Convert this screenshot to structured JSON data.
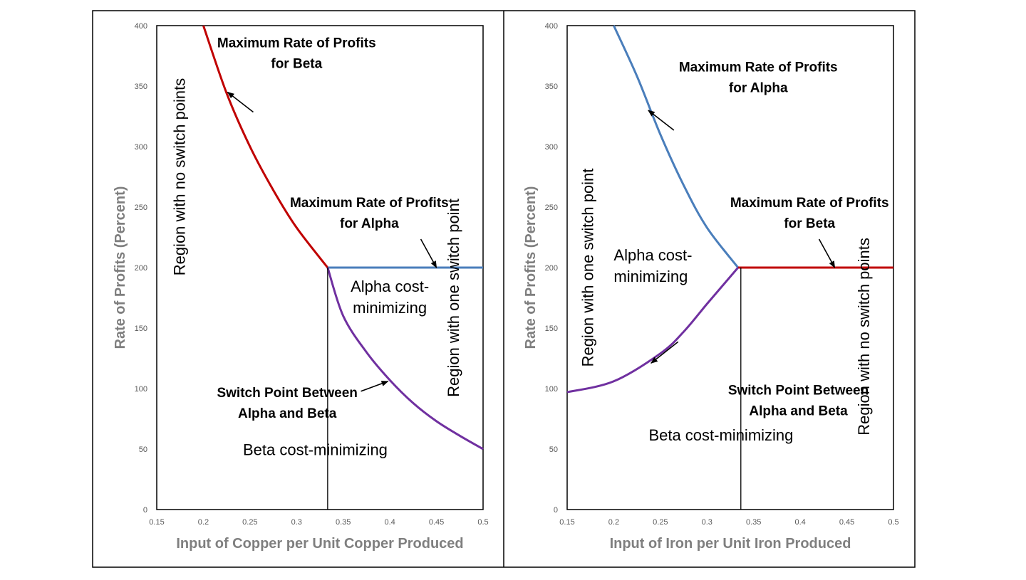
{
  "chart_data": [
    {
      "type": "line",
      "xlabel": "Input of Copper per Unit Copper Produced",
      "ylabel": "Rate of Profits (Percent)",
      "xlim": [
        0.15,
        0.5
      ],
      "ylim": [
        0,
        400
      ],
      "xticks": [
        "0.15",
        "0.2",
        "0.25",
        "0.3",
        "0.35",
        "0.4",
        "0.45",
        "0.5"
      ],
      "yticks": [
        "0",
        "50",
        "100",
        "150",
        "200",
        "250",
        "300",
        "350",
        "400"
      ],
      "grid": false,
      "series": [
        {
          "color": "#c00000",
          "x": [
            0.2,
            0.225,
            0.25,
            0.275,
            0.3,
            0.3333
          ],
          "y": [
            400,
            344,
            300,
            264,
            233,
            200
          ]
        },
        {
          "color": "#4a7ebb",
          "x": [
            0.3333,
            0.5
          ],
          "y": [
            200,
            200
          ]
        },
        {
          "color": "#7030a0",
          "x": [
            0.3333,
            0.35,
            0.375,
            0.4,
            0.425,
            0.45,
            0.475,
            0.5
          ],
          "y": [
            200,
            160,
            130,
            107,
            88,
            73,
            61,
            50
          ]
        }
      ],
      "vline": 0.3333,
      "annotations": [
        {
          "lines": [
            "Maximum Rate of Profits",
            "for Beta"
          ],
          "style": "bold",
          "x": 0.3,
          "y": 382,
          "arrow_to": [
            0.226,
            345
          ]
        },
        {
          "lines": [
            "Maximum Rate of Profits",
            "for Alpha"
          ],
          "style": "bold",
          "x": 0.378,
          "y": 250,
          "arrow_to": [
            0.45,
            200
          ]
        },
        {
          "lines": [
            "Alpha cost-",
            "minimizing"
          ],
          "style": "normal",
          "x": 0.4,
          "y": 180
        },
        {
          "lines": [
            "Switch Point Between",
            "Alpha and Beta"
          ],
          "style": "bold",
          "x": 0.29,
          "y": 93,
          "arrow_to": [
            0.398,
            106
          ]
        },
        {
          "lines": [
            "Beta cost-minimizing"
          ],
          "style": "normal",
          "x": 0.32,
          "y": 45
        },
        {
          "lines": [
            "Region with no switch points"
          ],
          "style": "normal",
          "rotate": true,
          "x": 0.18,
          "y": 275
        },
        {
          "lines": [
            "Region with one switch point"
          ],
          "style": "normal",
          "rotate": true,
          "x": 0.474,
          "y": 175
        }
      ]
    },
    {
      "type": "line",
      "xlabel": "Input of Iron per Unit Iron Produced",
      "ylabel": "Rate of Profits (Percent)",
      "xlim": [
        0.15,
        0.5
      ],
      "ylim": [
        0,
        400
      ],
      "xticks": [
        "0.15",
        "0.2",
        "0.25",
        "0.3",
        "0.35",
        "0.4",
        "0.45",
        "0.5"
      ],
      "yticks": [
        "0",
        "50",
        "100",
        "150",
        "200",
        "250",
        "300",
        "350",
        "400"
      ],
      "grid": false,
      "series": [
        {
          "color": "#4a7ebb",
          "x": [
            0.2,
            0.225,
            0.25,
            0.275,
            0.3,
            0.3333
          ],
          "y": [
            400,
            358,
            310,
            268,
            233,
            200
          ]
        },
        {
          "color": "#c00000",
          "x": [
            0.3333,
            0.5
          ],
          "y": [
            200,
            200
          ]
        },
        {
          "color": "#7030a0",
          "x": [
            0.15,
            0.2,
            0.25,
            0.275,
            0.3,
            0.32,
            0.3333
          ],
          "y": [
            97,
            106,
            129,
            147,
            170,
            188,
            200
          ]
        }
      ],
      "vline": 0.3363,
      "annotations": [
        {
          "lines": [
            "Maximum Rate of Profits",
            "for Alpha"
          ],
          "style": "bold",
          "x": 0.355,
          "y": 362,
          "arrow_to": [
            0.237,
            330
          ]
        },
        {
          "lines": [
            "Maximum Rate of Profits",
            "for Beta"
          ],
          "style": "bold",
          "x": 0.41,
          "y": 250,
          "arrow_to": [
            0.437,
            200
          ]
        },
        {
          "lines": [
            "Alpha cost-",
            "minimizing"
          ],
          "style": "normal",
          "x": 0.2,
          "y": 206,
          "anchor": "start"
        },
        {
          "lines": [
            "Switch Point Between",
            "Alpha and Beta"
          ],
          "style": "bold",
          "x": 0.398,
          "y": 95,
          "arrow_to": [
            0.24,
            121
          ]
        },
        {
          "lines": [
            "Beta cost-minimizing"
          ],
          "style": "normal",
          "x": 0.315,
          "y": 57
        },
        {
          "lines": [
            "Region with one switch point"
          ],
          "style": "normal",
          "rotate": true,
          "x": 0.178,
          "y": 200
        },
        {
          "lines": [
            "Region with no switch points"
          ],
          "style": "normal",
          "rotate": true,
          "x": 0.474,
          "y": 143
        }
      ]
    }
  ]
}
